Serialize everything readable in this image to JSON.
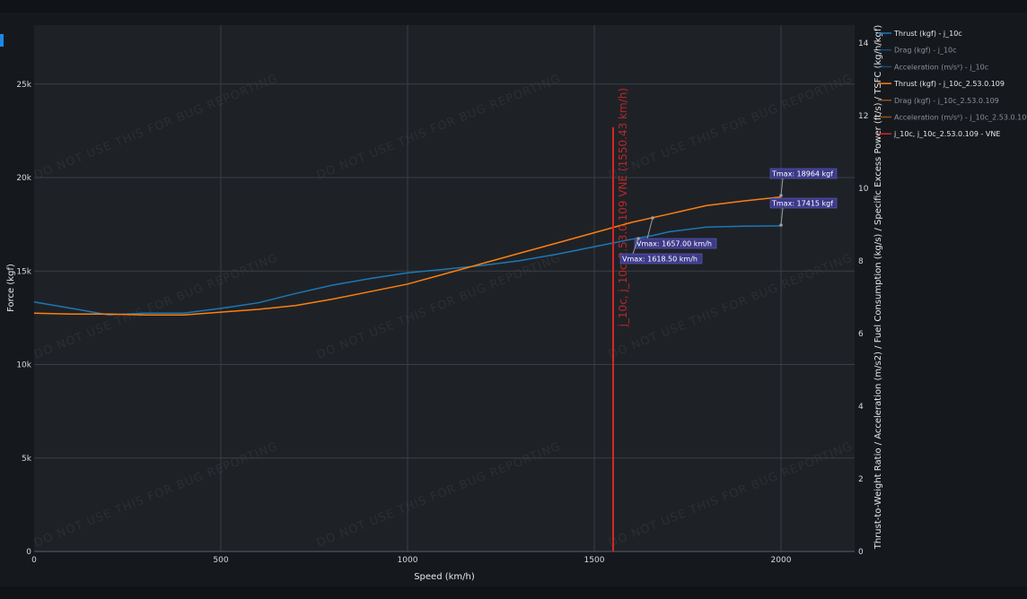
{
  "watermark": "DO NOT USE THIS FOR BUG REPORTING",
  "colors": {
    "background": "#15191e",
    "plot_background": "#1e2227",
    "grid": "#3a3f45",
    "thrust_j10c": "#1f77b4",
    "thrust_j10c_2": "#ff7f0e",
    "vne": "#d62728",
    "annotation_bg": "#3d3a8a",
    "legend_muted": "#8a8f96"
  },
  "chart_data": {
    "type": "line",
    "xlabel": "Speed (km/h)",
    "ylabel": "Force (kgf)",
    "y2label": "Thrust-to-Weight Ratio / Acceleration (m/s2) / Fuel Consumption (kg/s) / Specific Excess Power (ft/s) / TSFC (kg/h/kgf)",
    "xlim": [
      0,
      2200
    ],
    "ylim": [
      0,
      28500
    ],
    "y2lim": [
      0,
      14.7
    ],
    "x_ticks": [
      {
        "v": 0,
        "label": "0"
      },
      {
        "v": 500,
        "label": "500"
      },
      {
        "v": 1000,
        "label": "1000"
      },
      {
        "v": 1500,
        "label": "1500"
      },
      {
        "v": 2000,
        "label": "2000"
      }
    ],
    "y_ticks": [
      {
        "v": 0,
        "label": "0"
      },
      {
        "v": 5000,
        "label": "5k"
      },
      {
        "v": 10000,
        "label": "10k"
      },
      {
        "v": 15000,
        "label": "15k"
      },
      {
        "v": 20000,
        "label": "20k"
      },
      {
        "v": 25000,
        "label": "25k"
      }
    ],
    "y2_ticks": [
      {
        "v": 0,
        "label": "0"
      },
      {
        "v": 2,
        "label": "2"
      },
      {
        "v": 4,
        "label": "4"
      },
      {
        "v": 6,
        "label": "6"
      },
      {
        "v": 8,
        "label": "8"
      },
      {
        "v": 10,
        "label": "10"
      },
      {
        "v": 12,
        "label": "12"
      },
      {
        "v": 14,
        "label": "14"
      }
    ],
    "grid": true,
    "legend_placement": "top-right outside",
    "legend": [
      {
        "name": "Thrust (kgf) - j_10c",
        "color": "#1f77b4",
        "muted": false
      },
      {
        "name": "Drag (kgf) - j_10c",
        "color": "#1f77b4",
        "muted": true
      },
      {
        "name": "Acceleration (m/s²) - j_10c",
        "color": "#1f77b4",
        "muted": true
      },
      {
        "name": "Thrust (kgf) - j_10c_2.53.0.109",
        "color": "#ff7f0e",
        "muted": false
      },
      {
        "name": "Drag (kgf) - j_10c_2.53.0.109",
        "color": "#ff7f0e",
        "muted": true
      },
      {
        "name": "Acceleration (m/s²) - j_10c_2.53.0.109",
        "color": "#ff7f0e",
        "muted": true
      },
      {
        "name": "j_10c, j_10c_2.53.0.109 - VNE",
        "color": "#d62728",
        "muted": false
      }
    ],
    "series": [
      {
        "name": "Thrust (kgf) - j_10c",
        "color": "#1f77b4",
        "x": [
          0,
          100,
          200,
          300,
          400,
          500,
          600,
          700,
          800,
          900,
          1000,
          1100,
          1200,
          1300,
          1400,
          1500,
          1600,
          1657,
          1700,
          1800,
          1900,
          2000
        ],
        "y": [
          13350,
          13000,
          12650,
          12750,
          12750,
          13000,
          13300,
          13800,
          14250,
          14600,
          14900,
          15100,
          15300,
          15550,
          15900,
          16300,
          16700,
          16900,
          17100,
          17350,
          17400,
          17415
        ]
      },
      {
        "name": "Thrust (kgf) - j_10c_2.53.0.109",
        "color": "#ff7f0e",
        "x": [
          0,
          100,
          200,
          300,
          400,
          500,
          600,
          700,
          800,
          900,
          1000,
          1100,
          1200,
          1300,
          1400,
          1500,
          1600,
          1700,
          1800,
          1900,
          2000
        ],
        "y": [
          12750,
          12700,
          12700,
          12650,
          12650,
          12800,
          12950,
          13150,
          13500,
          13900,
          14300,
          14850,
          15400,
          15950,
          16500,
          17050,
          17600,
          18050,
          18500,
          18750,
          18964
        ]
      }
    ],
    "vne": {
      "x": 1550.43,
      "label": "j_10c, j_10c_2.53.0.109 VNE (1550.43 km/h)",
      "ymax": 22700
    },
    "annotations": [
      {
        "text": "Tmax: 18964 kgf",
        "ax": 2000,
        "ay": 18964
      },
      {
        "text": "Tmax: 17415 kgf",
        "ax": 2000,
        "ay": 17415
      },
      {
        "text": "Vmax: 1657.00 km/h",
        "ax": 1657,
        "ay": 17800
      },
      {
        "text": "Vmax: 1618.50 km/h",
        "ax": 1618.5,
        "ay": 16750
      }
    ]
  }
}
